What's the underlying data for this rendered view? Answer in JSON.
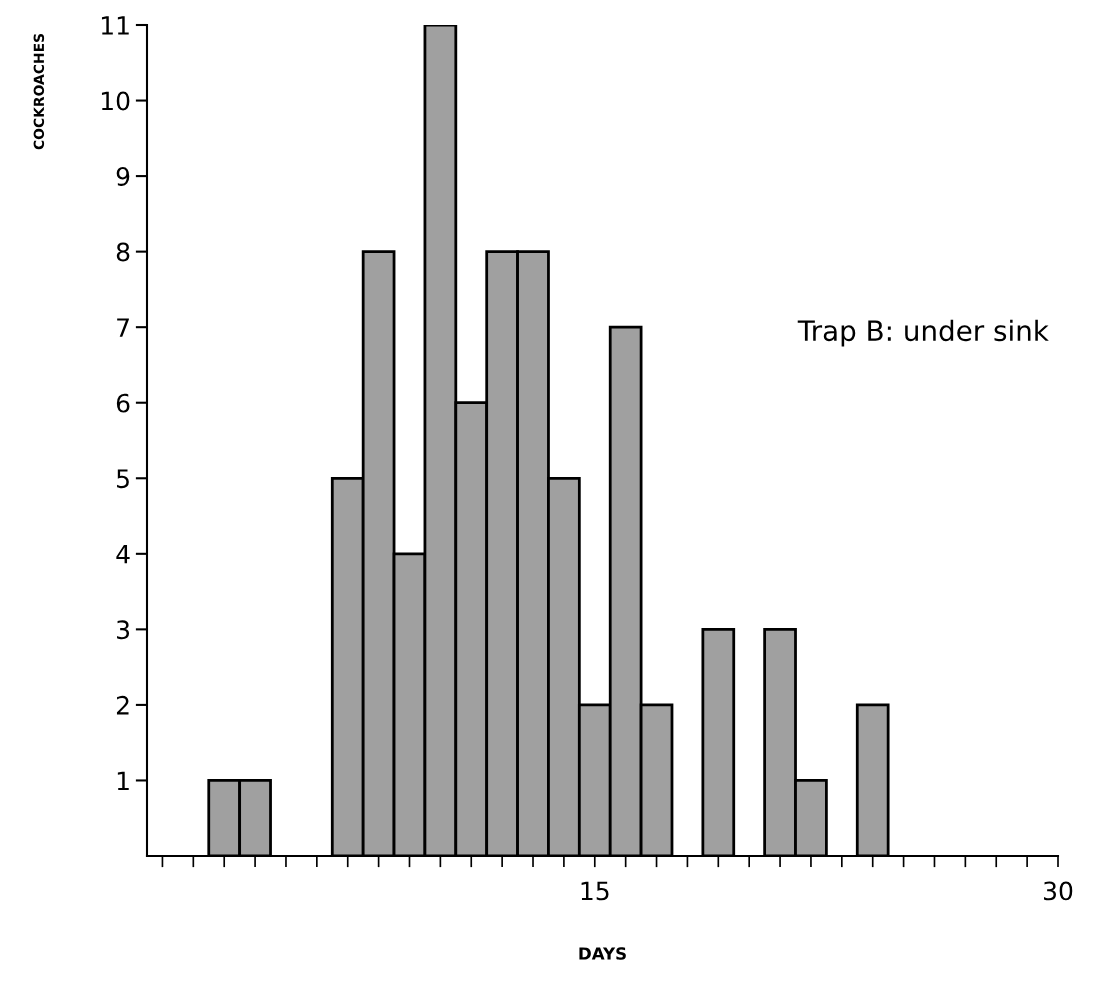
{
  "chart_data": {
    "type": "bar",
    "xlabel": "DAYS",
    "ylabel": "COCKROACHES",
    "annotations": [
      "Trap B: under sink"
    ],
    "x": [
      3,
      4,
      7,
      8,
      9,
      10,
      11,
      12,
      13,
      14,
      15,
      16,
      17,
      19,
      21,
      22,
      24
    ],
    "values": [
      1,
      1,
      5,
      8,
      4,
      11,
      6,
      8,
      8,
      5,
      2,
      7,
      2,
      3,
      3,
      1,
      2
    ],
    "color": "#a0a0a0",
    "xlim": [
      0.5,
      30
    ],
    "xticks": [
      {
        "value": 1,
        "label": null
      },
      {
        "value": 2,
        "label": null
      },
      {
        "value": 3,
        "label": null
      },
      {
        "value": 4,
        "label": null
      },
      {
        "value": 5,
        "label": null
      },
      {
        "value": 6,
        "label": null
      },
      {
        "value": 7,
        "label": null
      },
      {
        "value": 8,
        "label": null
      },
      {
        "value": 9,
        "label": null
      },
      {
        "value": 10,
        "label": null
      },
      {
        "value": 11,
        "label": null
      },
      {
        "value": 12,
        "label": null
      },
      {
        "value": 13,
        "label": null
      },
      {
        "value": 14,
        "label": null
      },
      15,
      {
        "value": 16,
        "label": null
      },
      {
        "value": 17,
        "label": null
      },
      {
        "value": 18,
        "label": null
      },
      {
        "value": 19,
        "label": null
      },
      {
        "value": 20,
        "label": null
      },
      {
        "value": 21,
        "label": null
      },
      {
        "value": 22,
        "label": null
      },
      {
        "value": 23,
        "label": null
      },
      {
        "value": 24,
        "label": null
      },
      {
        "value": 25,
        "label": null
      },
      {
        "value": 26,
        "label": null
      },
      {
        "value": 27,
        "label": null
      },
      {
        "value": 28,
        "label": null
      },
      {
        "value": 29,
        "label": null
      },
      30
    ],
    "ylim": [
      0,
      11
    ],
    "yticks": [
      1,
      2,
      3,
      4,
      5,
      6,
      7,
      8,
      9,
      10,
      11
    ],
    "grid": false,
    "legend": false
  }
}
